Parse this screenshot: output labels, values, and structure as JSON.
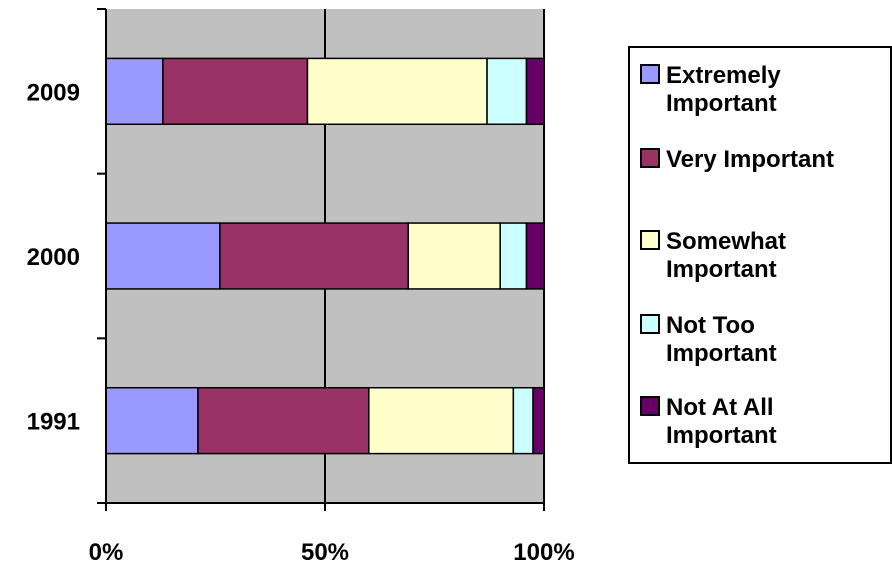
{
  "chart_data": {
    "type": "bar",
    "orientation": "horizontal",
    "stacked": "percent",
    "title": "",
    "xlabel": "",
    "ylabel": "",
    "categories": [
      "2009",
      "2000",
      "1991"
    ],
    "x_ticks": [
      "0%",
      "50%",
      "100%"
    ],
    "xlim": [
      0,
      100
    ],
    "grid": true,
    "legend_position": "right",
    "series": [
      {
        "name": "Extremely Important",
        "values": [
          13,
          26,
          21
        ],
        "color": "#9999ff"
      },
      {
        "name": "Very Important",
        "values": [
          33,
          43,
          39
        ],
        "color": "#993366"
      },
      {
        "name": "Somewhat Important",
        "values": [
          41,
          21,
          33
        ],
        "color": "#ffffcc"
      },
      {
        "name": "Not Too Important",
        "values": [
          9,
          6,
          4.5
        ],
        "color": "#ccffff"
      },
      {
        "name": "Not At All Important",
        "values": [
          4,
          4,
          2.5
        ],
        "color": "#660066"
      }
    ]
  }
}
